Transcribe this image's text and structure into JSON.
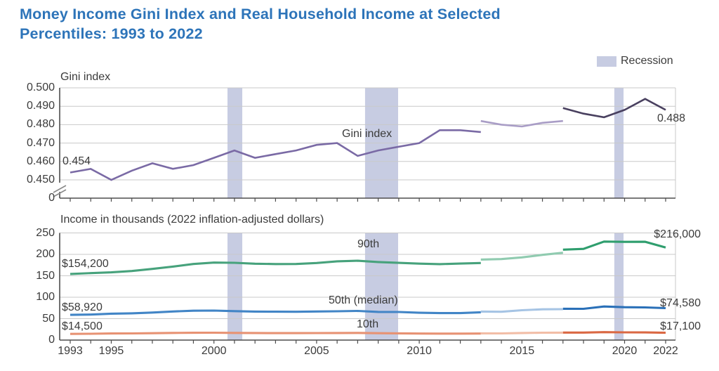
{
  "title": {
    "line1": "Money Income Gini Index and Real Household Income at Selected",
    "line2": "Percentiles: 1993 to 2022"
  },
  "legend": {
    "label": "Recession",
    "swatch_color": "#c7cce2"
  },
  "colors": {
    "title_blue": "#2d74b9",
    "recession_band": "#c7cce2",
    "text": "#3b3b3b",
    "axis": "#4d4d4d",
    "grid": "#c9c9c9",
    "gini_segments": [
      "#7a6aa5",
      "#a99dc6",
      "#49405f"
    ],
    "p90_segments": [
      "#47a27c",
      "#90cbb0",
      "#2f9e6e"
    ],
    "p50_segments": [
      "#4285c6",
      "#a6c4e4",
      "#2a70b8"
    ],
    "p10_segments": [
      "#e79273",
      "#f2bda6",
      "#da6843"
    ]
  },
  "xaxis": {
    "range": [
      1993,
      2022
    ],
    "tick_years_labeled": [
      1993,
      1995,
      2000,
      2005,
      2010,
      2015,
      2020,
      2022
    ]
  },
  "recession_bands": [
    {
      "from": 2000.66,
      "to": 2001.38
    },
    {
      "from": 2007.36,
      "to": 2008.97
    },
    {
      "from": 2019.5,
      "to": 2019.95
    }
  ],
  "chart_data": [
    {
      "type": "line",
      "panel": "gini",
      "title": "Gini index",
      "series_label": "Gini index",
      "start_value_label": "0.454",
      "end_value_label": "0.488",
      "ylim": [
        0.45,
        0.5
      ],
      "axis_break_to_zero": true,
      "zero_label": "0",
      "yticks": [
        {
          "v": 0.5,
          "label": "0.500"
        },
        {
          "v": 0.49,
          "label": "0.490"
        },
        {
          "v": 0.48,
          "label": "0.480"
        },
        {
          "v": 0.47,
          "label": "0.470"
        },
        {
          "v": 0.46,
          "label": "0.460"
        },
        {
          "v": 0.45,
          "label": "0.450"
        }
      ],
      "segments": [
        {
          "name": "1993-2013",
          "years": [
            1993,
            1994,
            1995,
            1996,
            1997,
            1998,
            1999,
            2000,
            2001,
            2002,
            2003,
            2004,
            2005,
            2006,
            2007,
            2008,
            2009,
            2010,
            2011,
            2012,
            2013
          ],
          "values": [
            0.454,
            0.456,
            0.45,
            0.455,
            0.459,
            0.456,
            0.458,
            0.462,
            0.466,
            0.462,
            0.464,
            0.466,
            0.469,
            0.47,
            0.463,
            0.466,
            0.468,
            0.47,
            0.477,
            0.477,
            0.476
          ]
        },
        {
          "name": "2013-2017",
          "years": [
            2013,
            2014,
            2015,
            2016,
            2017
          ],
          "values": [
            0.482,
            0.48,
            0.479,
            0.481,
            0.482
          ]
        },
        {
          "name": "2017-2022",
          "years": [
            2017,
            2018,
            2019,
            2020,
            2021,
            2022
          ],
          "values": [
            0.489,
            0.486,
            0.484,
            0.488,
            0.494,
            0.488
          ]
        }
      ]
    },
    {
      "type": "line",
      "panel": "income",
      "title": "Income in thousands (2022 inflation-adjusted dollars)",
      "ylim": [
        0,
        250
      ],
      "yticks": [
        {
          "v": 250,
          "label": "250"
        },
        {
          "v": 200,
          "label": "200"
        },
        {
          "v": 150,
          "label": "150"
        },
        {
          "v": 100,
          "label": "100"
        },
        {
          "v": 50,
          "label": "50"
        },
        {
          "v": 0,
          "label": "0"
        }
      ],
      "series": [
        {
          "name": "p90",
          "label": "90th",
          "start_value_label": "$154,200",
          "end_value_label": "$216,000",
          "segments": [
            {
              "name": "1993-2013",
              "years": [
                1993,
                1994,
                1995,
                1996,
                1997,
                1998,
                1999,
                2000,
                2001,
                2002,
                2003,
                2004,
                2005,
                2006,
                2007,
                2008,
                2009,
                2010,
                2011,
                2012,
                2013
              ],
              "values": [
                154.2,
                156.2,
                158.1,
                161.2,
                166.0,
                171.5,
                177.5,
                180.9,
                180.3,
                178.2,
                177.3,
                177.6,
                179.9,
                183.7,
                185.1,
                182.1,
                180.2,
                178.3,
                177.2,
                178.6,
                179.8
              ]
            },
            {
              "name": "2013-2017",
              "years": [
                2013,
                2014,
                2015,
                2016,
                2017
              ],
              "values": [
                187.8,
                189.0,
                193.0,
                198.8,
                203.7
              ]
            },
            {
              "name": "2017-2022",
              "years": [
                2017,
                2018,
                2019,
                2020,
                2021,
                2022
              ],
              "values": [
                211.0,
                212.8,
                229.9,
                229.1,
                229.3,
                216.0
              ]
            }
          ]
        },
        {
          "name": "p50",
          "label": "50th (median)",
          "start_value_label": "$58,920",
          "end_value_label": "$74,580",
          "segments": [
            {
              "name": "1993-2013",
              "years": [
                1993,
                1994,
                1995,
                1996,
                1997,
                1998,
                1999,
                2000,
                2001,
                2002,
                2003,
                2004,
                2005,
                2006,
                2007,
                2008,
                2009,
                2010,
                2011,
                2012,
                2013
              ],
              "values": [
                58.9,
                59.5,
                61.6,
                62.5,
                64.2,
                66.8,
                68.6,
                68.9,
                67.6,
                66.6,
                66.3,
                66.1,
                66.7,
                67.2,
                68.1,
                65.8,
                65.5,
                63.8,
                62.9,
                63.0,
                64.9
              ]
            },
            {
              "name": "2013-2017",
              "years": [
                2013,
                2014,
                2015,
                2016,
                2017
              ],
              "values": [
                66.5,
                66.1,
                69.6,
                71.8,
                72.1
              ]
            },
            {
              "name": "2017-2022",
              "years": [
                2017,
                2018,
                2019,
                2020,
                2021,
                2022
              ],
              "values": [
                73.1,
                73.0,
                78.3,
                76.7,
                76.3,
                74.6
              ]
            }
          ]
        },
        {
          "name": "p10",
          "label": "10th",
          "start_value_label": "$14,500",
          "end_value_label": "$17,100",
          "segments": [
            {
              "name": "1993-2013",
              "years": [
                1993,
                1994,
                1995,
                1996,
                1997,
                1998,
                1999,
                2000,
                2001,
                2002,
                2003,
                2004,
                2005,
                2006,
                2007,
                2008,
                2009,
                2010,
                2011,
                2012,
                2013
              ],
              "values": [
                14.5,
                14.7,
                15.4,
                15.6,
                16.0,
                16.7,
                17.1,
                17.2,
                16.8,
                16.5,
                16.3,
                16.2,
                16.4,
                16.6,
                16.8,
                16.0,
                15.8,
                15.3,
                15.1,
                15.1,
                15.3
              ]
            },
            {
              "name": "2013-2017",
              "years": [
                2013,
                2014,
                2015,
                2016,
                2017
              ],
              "values": [
                15.8,
                15.6,
                16.5,
                17.2,
                17.3
              ]
            },
            {
              "name": "2017-2022",
              "years": [
                2017,
                2018,
                2019,
                2020,
                2021,
                2022
              ],
              "values": [
                17.5,
                17.6,
                18.6,
                18.0,
                17.9,
                17.1
              ]
            }
          ]
        }
      ]
    }
  ]
}
